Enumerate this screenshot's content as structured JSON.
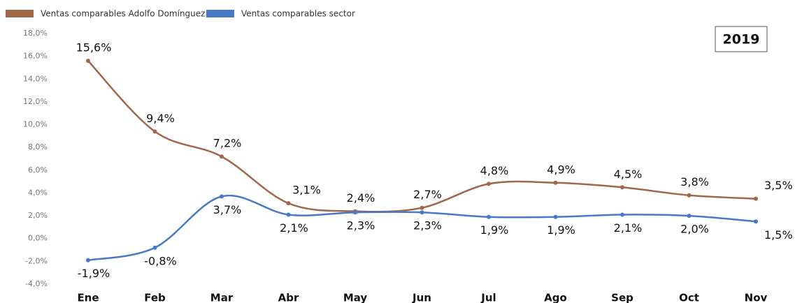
{
  "chart_data": {
    "type": "line",
    "annotation": "2019",
    "categories": [
      "Ene",
      "Feb",
      "Mar",
      "Abr",
      "May",
      "Jun",
      "Jul",
      "Ago",
      "Sep",
      "Oct",
      "Nov"
    ],
    "series": [
      {
        "name": "Ventas comparables Adolfo Domínguez",
        "color": "#a0674b",
        "values": [
          15.6,
          9.4,
          7.2,
          3.1,
          2.4,
          2.7,
          4.8,
          4.9,
          4.5,
          3.8,
          3.5
        ],
        "value_labels": [
          "15,6%",
          "9,4%",
          "7,2%",
          "3,1%",
          "2,4%",
          "2,7%",
          "4,8%",
          "4,9%",
          "4,5%",
          "3,8%",
          "3,5%"
        ]
      },
      {
        "name": "Ventas comparables sector",
        "color": "#4a78c8",
        "values": [
          -1.9,
          -0.8,
          3.7,
          2.1,
          2.3,
          2.3,
          1.9,
          1.9,
          2.1,
          2.0,
          1.5
        ],
        "value_labels": [
          "-1,9%",
          "-0,8%",
          "3,7%",
          "2,1%",
          "2,3%",
          "2,3%",
          "1,9%",
          "1,9%",
          "2,1%",
          "2,0%",
          "1,5%"
        ]
      }
    ],
    "ylim": [
      -4,
      18
    ],
    "yticks": [
      {
        "value": -4,
        "label": "-4,0%"
      },
      {
        "value": -2,
        "label": "-2,0%"
      },
      {
        "value": 0,
        "label": "0,0%"
      },
      {
        "value": 2,
        "label": "2,0%"
      },
      {
        "value": 4,
        "label": "4,0%"
      },
      {
        "value": 6,
        "label": "6,0%"
      },
      {
        "value": 8,
        "label": "8,0%"
      },
      {
        "value": 10,
        "label": "10,0%"
      },
      {
        "value": 12,
        "label": "12,0%"
      },
      {
        "value": 14,
        "label": "14,0%"
      },
      {
        "value": 16,
        "label": "16,0%"
      },
      {
        "value": 18,
        "label": "18,0%"
      }
    ],
    "grid": false,
    "legend": "top-left"
  }
}
